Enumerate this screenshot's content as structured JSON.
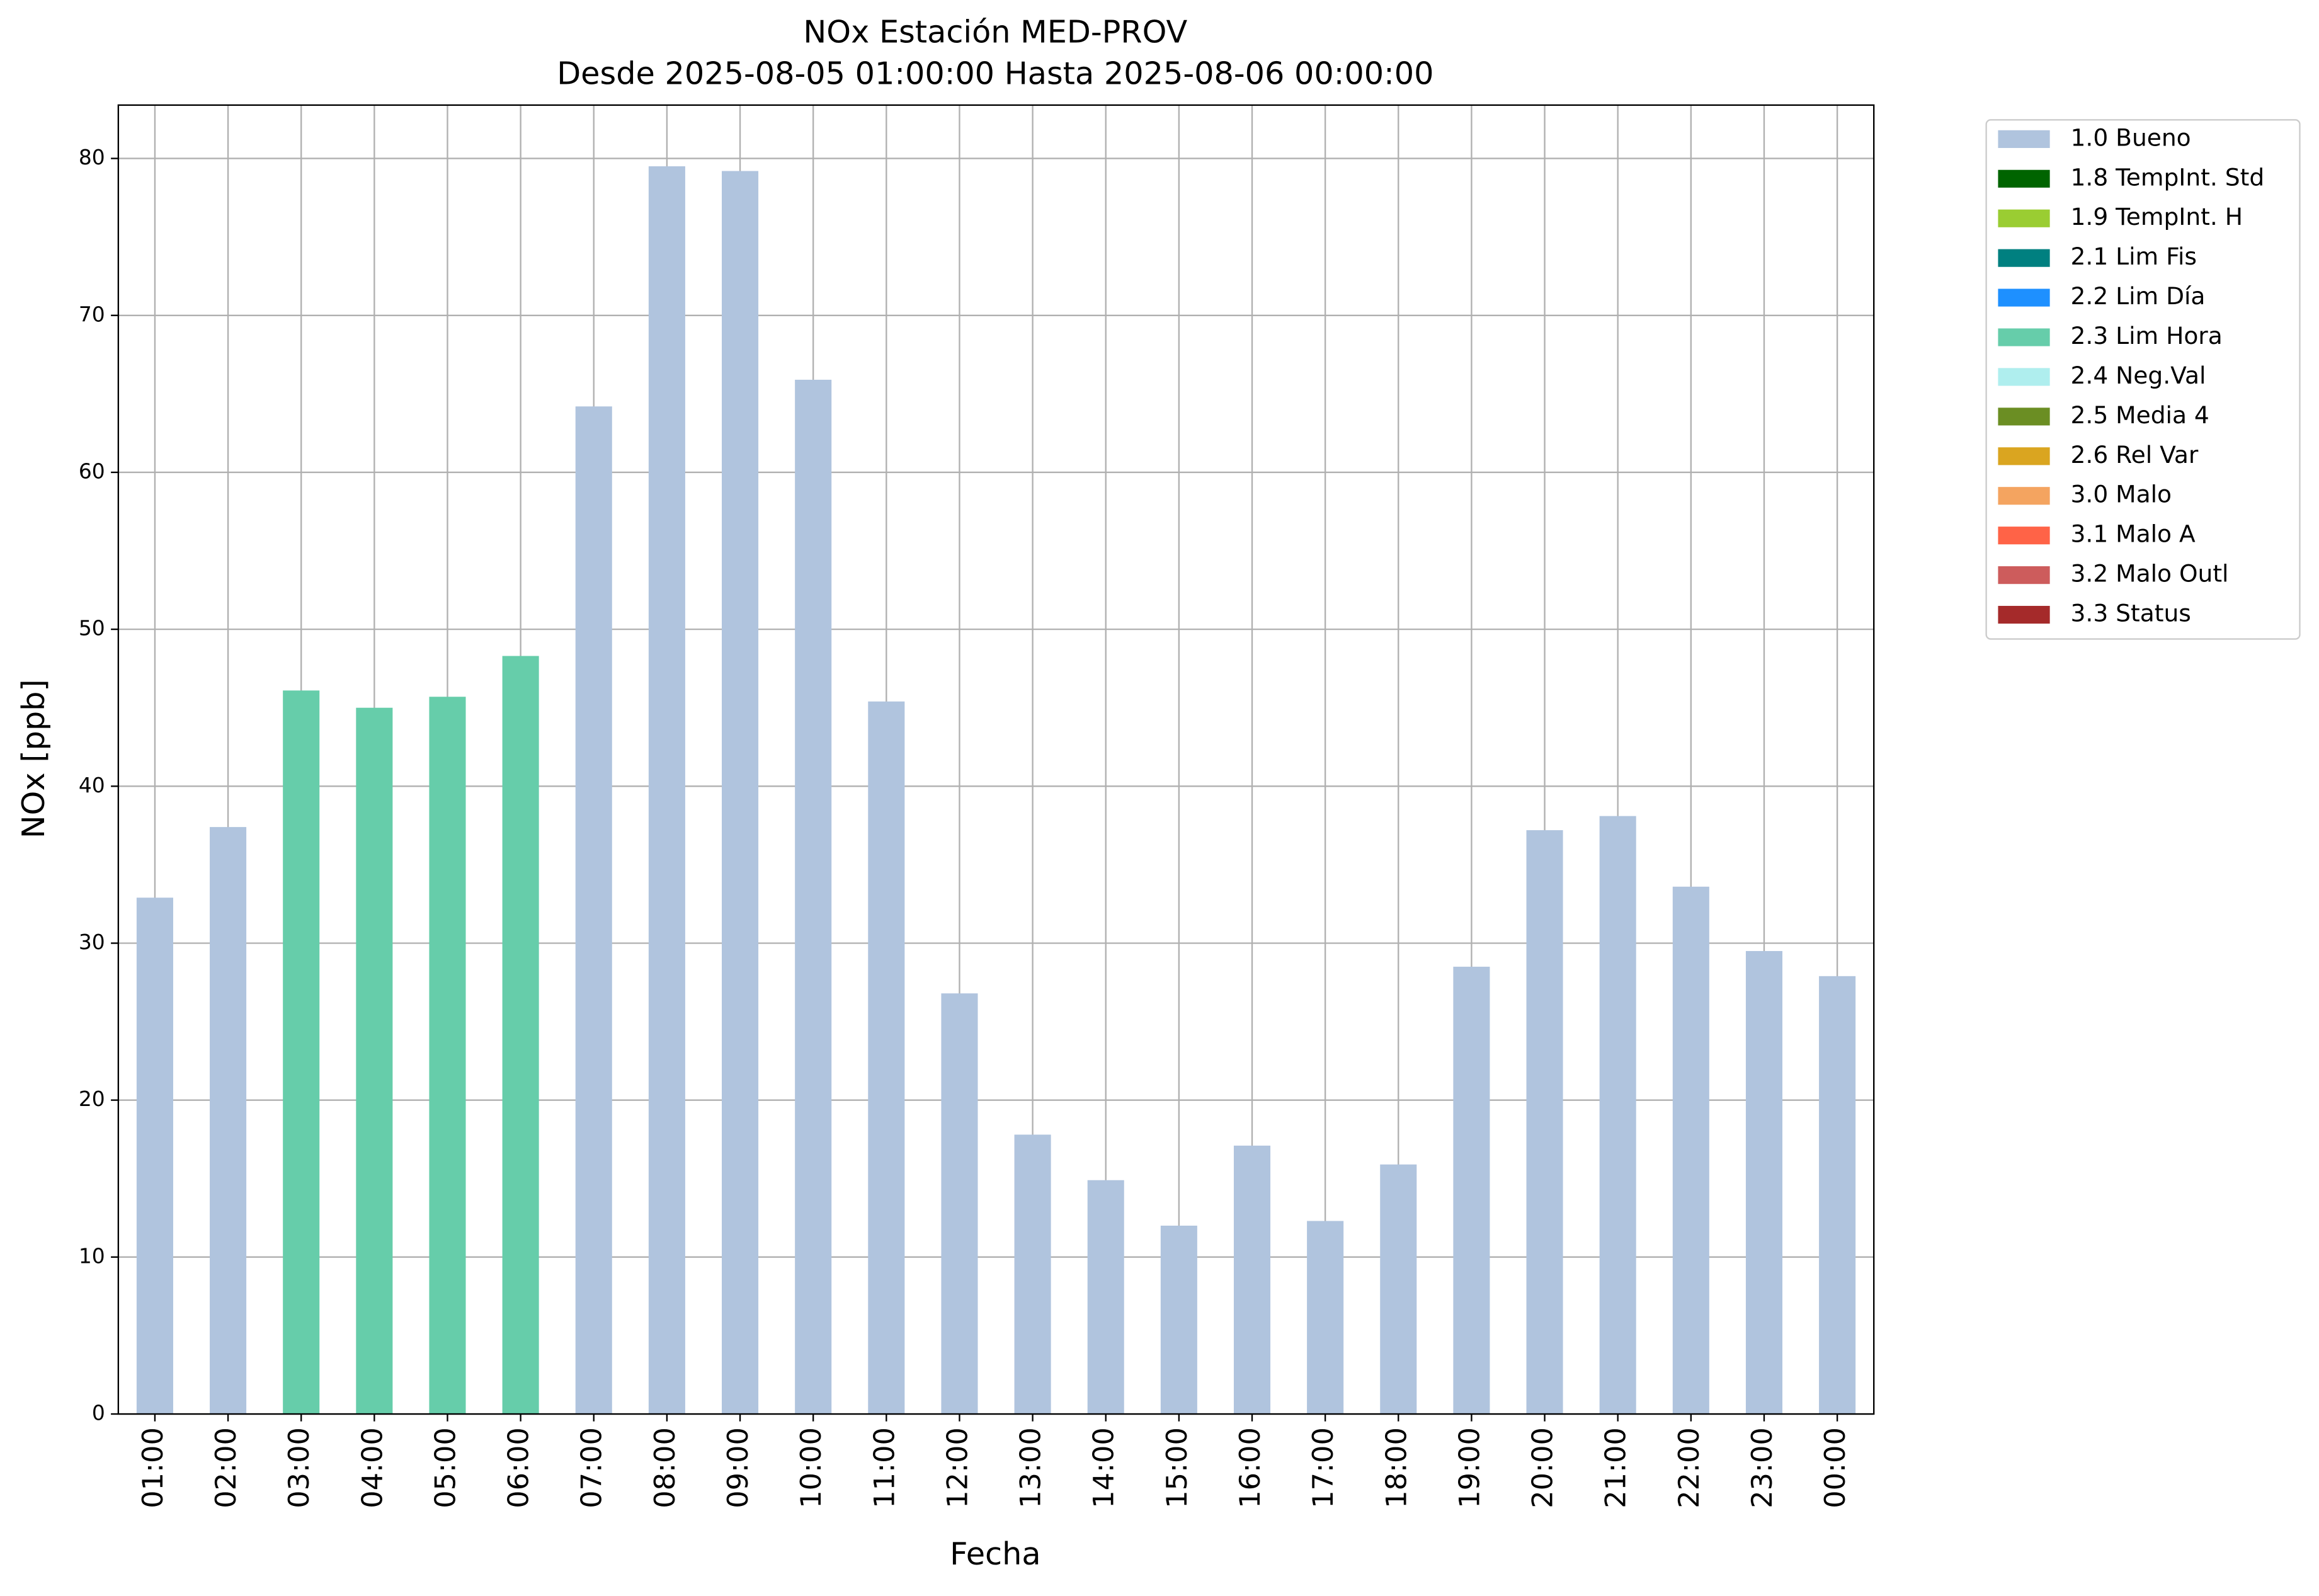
{
  "chart_data": {
    "type": "bar",
    "stacked": true,
    "title": "NOx Estación MED-PROV",
    "subtitle": "Desde 2025-08-05 01:00:00 Hasta 2025-08-06 00:00:00",
    "x_label": "Fecha",
    "y_label": "NOx [ppb]",
    "categories": [
      "01:00",
      "02:00",
      "03:00",
      "04:00",
      "05:00",
      "06:00",
      "07:00",
      "08:00",
      "09:00",
      "10:00",
      "11:00",
      "12:00",
      "13:00",
      "14:00",
      "15:00",
      "16:00",
      "17:00",
      "18:00",
      "19:00",
      "20:00",
      "21:00",
      "22:00",
      "23:00",
      "00:00"
    ],
    "series": [
      {
        "name": "1.0 Bueno",
        "color": "#b0c4de",
        "values": [
          32.9,
          37.4,
          null,
          null,
          null,
          null,
          64.2,
          79.5,
          79.2,
          65.9,
          45.4,
          26.8,
          17.8,
          14.9,
          12.0,
          17.1,
          12.3,
          15.9,
          28.5,
          37.2,
          38.1,
          33.6,
          29.5,
          27.9
        ]
      },
      {
        "name": "1.8 TempInt. Std",
        "color": "#006400",
        "values": [
          null,
          null,
          null,
          null,
          null,
          null,
          null,
          null,
          null,
          null,
          null,
          null,
          null,
          null,
          null,
          null,
          null,
          null,
          null,
          null,
          null,
          null,
          null,
          null
        ]
      },
      {
        "name": "1.9 TempInt. H",
        "color": "#9acd32",
        "values": [
          null,
          null,
          null,
          null,
          null,
          null,
          null,
          null,
          null,
          null,
          null,
          null,
          null,
          null,
          null,
          null,
          null,
          null,
          null,
          null,
          null,
          null,
          null,
          null
        ]
      },
      {
        "name": "2.1 Lim Fis",
        "color": "#008080",
        "values": [
          null,
          null,
          null,
          null,
          null,
          null,
          null,
          null,
          null,
          null,
          null,
          null,
          null,
          null,
          null,
          null,
          null,
          null,
          null,
          null,
          null,
          null,
          null,
          null
        ]
      },
      {
        "name": "2.2 Lim Día",
        "color": "#1e90ff",
        "values": [
          null,
          null,
          null,
          null,
          null,
          null,
          null,
          null,
          null,
          null,
          null,
          null,
          null,
          null,
          null,
          null,
          null,
          null,
          null,
          null,
          null,
          null,
          null,
          null
        ]
      },
      {
        "name": "2.3 Lim Hora",
        "color": "#66cdaa",
        "values": [
          null,
          null,
          46.1,
          45.0,
          45.7,
          48.3,
          null,
          null,
          null,
          null,
          null,
          null,
          null,
          null,
          null,
          null,
          null,
          null,
          null,
          null,
          null,
          null,
          null,
          null
        ]
      },
      {
        "name": "2.4 Neg.Val",
        "color": "#afeeee",
        "values": [
          null,
          null,
          null,
          null,
          null,
          null,
          null,
          null,
          null,
          null,
          null,
          null,
          null,
          null,
          null,
          null,
          null,
          null,
          null,
          null,
          null,
          null,
          null,
          null
        ]
      },
      {
        "name": "2.5 Media 4",
        "color": "#6b8e23",
        "values": [
          null,
          null,
          null,
          null,
          null,
          null,
          null,
          null,
          null,
          null,
          null,
          null,
          null,
          null,
          null,
          null,
          null,
          null,
          null,
          null,
          null,
          null,
          null,
          null
        ]
      },
      {
        "name": "2.6 Rel Var",
        "color": "#daa520",
        "values": [
          null,
          null,
          null,
          null,
          null,
          null,
          null,
          null,
          null,
          null,
          null,
          null,
          null,
          null,
          null,
          null,
          null,
          null,
          null,
          null,
          null,
          null,
          null,
          null
        ]
      },
      {
        "name": "3.0 Malo",
        "color": "#f4a460",
        "values": [
          null,
          null,
          null,
          null,
          null,
          null,
          null,
          null,
          null,
          null,
          null,
          null,
          null,
          null,
          null,
          null,
          null,
          null,
          null,
          null,
          null,
          null,
          null,
          null
        ]
      },
      {
        "name": "3.1 Malo A",
        "color": "#ff6347",
        "values": [
          null,
          null,
          null,
          null,
          null,
          null,
          null,
          null,
          null,
          null,
          null,
          null,
          null,
          null,
          null,
          null,
          null,
          null,
          null,
          null,
          null,
          null,
          null,
          null
        ]
      },
      {
        "name": "3.2 Malo Outl",
        "color": "#cd5c5c",
        "values": [
          null,
          null,
          null,
          null,
          null,
          null,
          null,
          null,
          null,
          null,
          null,
          null,
          null,
          null,
          null,
          null,
          null,
          null,
          null,
          null,
          null,
          null,
          null,
          null
        ]
      },
      {
        "name": "3.3 Status",
        "color": "#a52a2a",
        "values": [
          null,
          null,
          null,
          null,
          null,
          null,
          null,
          null,
          null,
          null,
          null,
          null,
          null,
          null,
          null,
          null,
          null,
          null,
          null,
          null,
          null,
          null,
          null,
          null
        ]
      }
    ],
    "ylim": [
      0,
      83.4
    ],
    "yticks": [
      0,
      10,
      20,
      30,
      40,
      50,
      60,
      70,
      80
    ],
    "grid": true,
    "legend": "outside-right"
  }
}
